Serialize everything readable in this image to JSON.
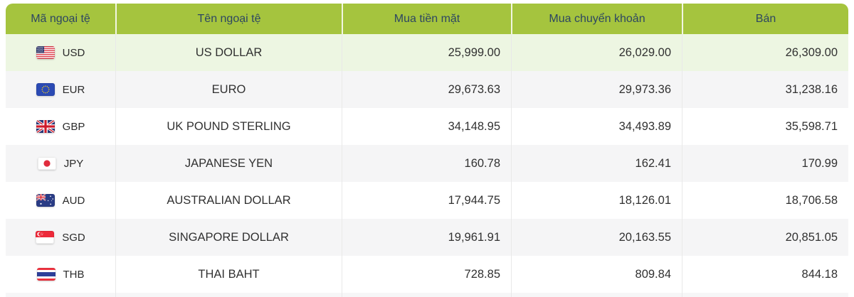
{
  "table": {
    "header": {
      "code": "Mã ngoại tệ",
      "name": "Tên ngoại tệ",
      "buy_cash": "Mua tiền mặt",
      "buy_transfer": "Mua chuyển khoản",
      "sell": "Bán"
    },
    "rows": [
      {
        "flag_icon": "us-flag-icon",
        "code": "USD",
        "name": "US DOLLAR",
        "buy_cash": "25,999.00",
        "buy_transfer": "26,029.00",
        "sell": "26,309.00",
        "highlight": true
      },
      {
        "flag_icon": "eu-flag-icon",
        "code": "EUR",
        "name": "EURO",
        "buy_cash": "29,673.63",
        "buy_transfer": "29,973.36",
        "sell": "31,238.16",
        "highlight": false
      },
      {
        "flag_icon": "gb-flag-icon",
        "code": "GBP",
        "name": "UK POUND STERLING",
        "buy_cash": "34,148.95",
        "buy_transfer": "34,493.89",
        "sell": "35,598.71",
        "highlight": false
      },
      {
        "flag_icon": "jp-flag-icon",
        "code": "JPY",
        "name": "JAPANESE YEN",
        "buy_cash": "160.78",
        "buy_transfer": "162.41",
        "sell": "170.99",
        "highlight": false
      },
      {
        "flag_icon": "au-flag-icon",
        "code": "AUD",
        "name": "AUSTRALIAN DOLLAR",
        "buy_cash": "17,944.75",
        "buy_transfer": "18,126.01",
        "sell": "18,706.58",
        "highlight": false
      },
      {
        "flag_icon": "sg-flag-icon",
        "code": "SGD",
        "name": "SINGAPORE DOLLAR",
        "buy_cash": "19,961.91",
        "buy_transfer": "20,163.55",
        "sell": "20,851.05",
        "highlight": false
      },
      {
        "flag_icon": "th-flag-icon",
        "code": "THB",
        "name": "THAI BAHT",
        "buy_cash": "728.85",
        "buy_transfer": "809.84",
        "sell": "844.18",
        "highlight": false
      }
    ],
    "colors": {
      "header_bg": "#a5c43e",
      "header_text": "#2d4662",
      "header_divider": "rgba(255,255,255,0.85)",
      "row_highlight": "#edf6e2",
      "row_alt": "#f5f5f6",
      "row_white": "#ffffff",
      "partial_row": "#f6f6f7",
      "cell_divider": "#e9e9e9",
      "body_text": "#313131"
    }
  }
}
